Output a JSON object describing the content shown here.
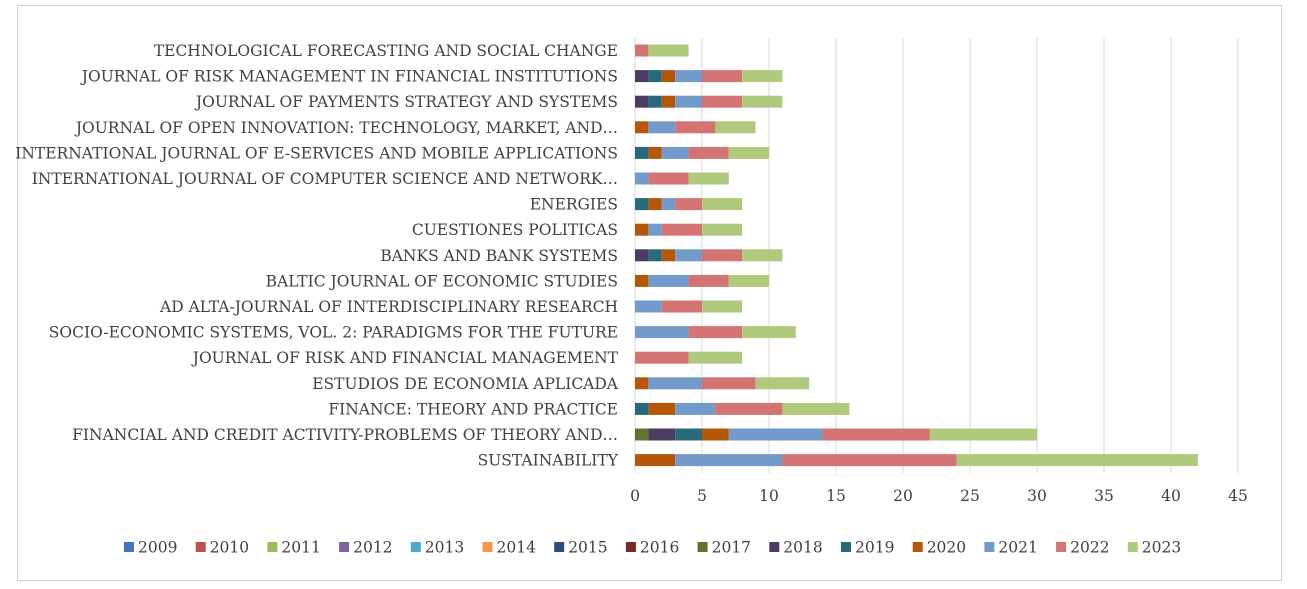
{
  "chart_data": {
    "type": "bar",
    "orientation": "horizontal",
    "stacked": true,
    "categories": [
      "TECHNOLOGICAL FORECASTING AND SOCIAL CHANGE",
      "JOURNAL OF RISK MANAGEMENT IN FINANCIAL INSTITUTIONS",
      "JOURNAL OF PAYMENTS STRATEGY AND SYSTEMS",
      "JOURNAL OF OPEN INNOVATION: TECHNOLOGY, MARKET, AND…",
      "INTERNATIONAL JOURNAL OF E-SERVICES AND MOBILE APPLICATIONS",
      "INTERNATIONAL JOURNAL OF COMPUTER SCIENCE AND NETWORK…",
      "ENERGIES",
      "CUESTIONES POLITICAS",
      "BANKS AND BANK SYSTEMS",
      "BALTIC JOURNAL OF ECONOMIC STUDIES",
      "AD ALTA-JOURNAL OF INTERDISCIPLINARY RESEARCH",
      "SOCIO-ECONOMIC SYSTEMS, VOL. 2: PARADIGMS FOR THE FUTURE",
      "JOURNAL OF RISK AND FINANCIAL MANAGEMENT",
      "ESTUDIOS DE ECONOMIA APLICADA",
      "FINANCE: THEORY AND PRACTICE",
      "FINANCIAL AND CREDIT ACTIVITY-PROBLEMS OF THEORY AND…",
      "SUSTAINABILITY"
    ],
    "series": [
      {
        "name": "2009",
        "color": "#4472c4",
        "values": [
          0,
          0,
          0,
          0,
          0,
          0,
          0,
          0,
          0,
          0,
          0,
          0,
          0,
          0,
          0,
          0,
          0
        ]
      },
      {
        "name": "2010",
        "color": "#c0504d",
        "values": [
          0,
          0,
          0,
          0,
          0,
          0,
          0,
          0,
          0,
          0,
          0,
          0,
          0,
          0,
          0,
          0,
          0
        ]
      },
      {
        "name": "2011",
        "color": "#9bbb59",
        "values": [
          0,
          0,
          0,
          0,
          0,
          0,
          0,
          0,
          0,
          0,
          0,
          0,
          0,
          0,
          0,
          0,
          0
        ]
      },
      {
        "name": "2012",
        "color": "#8064a2",
        "values": [
          0,
          0,
          0,
          0,
          0,
          0,
          0,
          0,
          0,
          0,
          0,
          0,
          0,
          0,
          0,
          0,
          0
        ]
      },
      {
        "name": "2013",
        "color": "#4bacc6",
        "values": [
          0,
          0,
          0,
          0,
          0,
          0,
          0,
          0,
          0,
          0,
          0,
          0,
          0,
          0,
          0,
          0,
          0
        ]
      },
      {
        "name": "2014",
        "color": "#f79646",
        "values": [
          0,
          0,
          0,
          0,
          0,
          0,
          0,
          0,
          0,
          0,
          0,
          0,
          0,
          0,
          0,
          0,
          0
        ]
      },
      {
        "name": "2015",
        "color": "#2c4d75",
        "values": [
          0,
          0,
          0,
          0,
          0,
          0,
          0,
          0,
          0,
          0,
          0,
          0,
          0,
          0,
          0,
          0,
          0
        ]
      },
      {
        "name": "2016",
        "color": "#772c2a",
        "values": [
          0,
          0,
          0,
          0,
          0,
          0,
          0,
          0,
          0,
          0,
          0,
          0,
          0,
          0,
          0,
          0,
          0
        ]
      },
      {
        "name": "2017",
        "color": "#5f7530",
        "values": [
          0,
          0,
          0,
          0,
          0,
          0,
          0,
          0,
          0,
          0,
          0,
          0,
          0,
          0,
          0,
          1,
          0
        ]
      },
      {
        "name": "2018",
        "color": "#4d3b62",
        "values": [
          0,
          1,
          1,
          0,
          0,
          0,
          0,
          0,
          1,
          0,
          0,
          0,
          0,
          0,
          0,
          2,
          0
        ]
      },
      {
        "name": "2019",
        "color": "#276a7c",
        "values": [
          0,
          1,
          1,
          0,
          1,
          0,
          1,
          0,
          1,
          0,
          0,
          0,
          0,
          0,
          1,
          2,
          0
        ]
      },
      {
        "name": "2020",
        "color": "#b65708",
        "values": [
          0,
          1,
          1,
          1,
          1,
          0,
          1,
          1,
          1,
          1,
          0,
          0,
          0,
          1,
          2,
          2,
          3
        ]
      },
      {
        "name": "2021",
        "color": "#729aca",
        "values": [
          0,
          2,
          2,
          2,
          2,
          1,
          1,
          1,
          2,
          3,
          2,
          4,
          0,
          4,
          3,
          7,
          8
        ]
      },
      {
        "name": "2022",
        "color": "#d47472",
        "values": [
          1,
          3,
          3,
          3,
          3,
          3,
          2,
          3,
          3,
          3,
          3,
          4,
          4,
          4,
          5,
          8,
          13
        ]
      },
      {
        "name": "2023",
        "color": "#afca7d",
        "values": [
          3,
          3,
          3,
          3,
          3,
          3,
          3,
          3,
          3,
          3,
          3,
          4,
          4,
          4,
          5,
          8,
          18
        ]
      }
    ],
    "x_ticks": [
      0,
      5,
      10,
      15,
      20,
      25,
      30,
      35,
      40,
      45
    ],
    "xlim": [
      0,
      45
    ],
    "grid": true,
    "legend_position": "bottom",
    "title": "",
    "xlabel": "",
    "ylabel": ""
  }
}
